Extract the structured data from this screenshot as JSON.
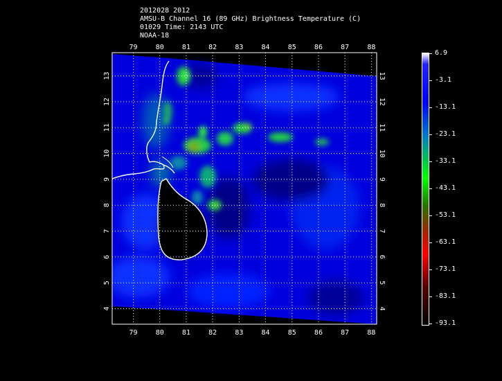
{
  "header": {
    "line1": "2012028 2012",
    "line2": "AMSU-B Channel 16 (89 GHz) Brightness Temperature (C)",
    "line3": "01029 Time: 2143 UTC",
    "line4": "NOAA-18"
  },
  "map": {
    "lon_ticks": [
      "79",
      "80",
      "81",
      "82",
      "83",
      "84",
      "85",
      "86",
      "87",
      "88"
    ],
    "lat_ticks": [
      "4",
      "5",
      "6",
      "7",
      "8",
      "9",
      "10",
      "11",
      "12",
      "13"
    ],
    "lon_range": [
      78.2,
      88.2
    ],
    "lat_range": [
      3.4,
      13.9
    ],
    "grid": true
  },
  "colorbar": {
    "labels": [
      "6.9",
      "-3.1",
      "-13.1",
      "-23.1",
      "-33.1",
      "-43.1",
      "-53.1",
      "-63.1",
      "-73.1",
      "-83.1",
      "-93.1"
    ],
    "range": [
      -93.1,
      6.9
    ]
  }
}
